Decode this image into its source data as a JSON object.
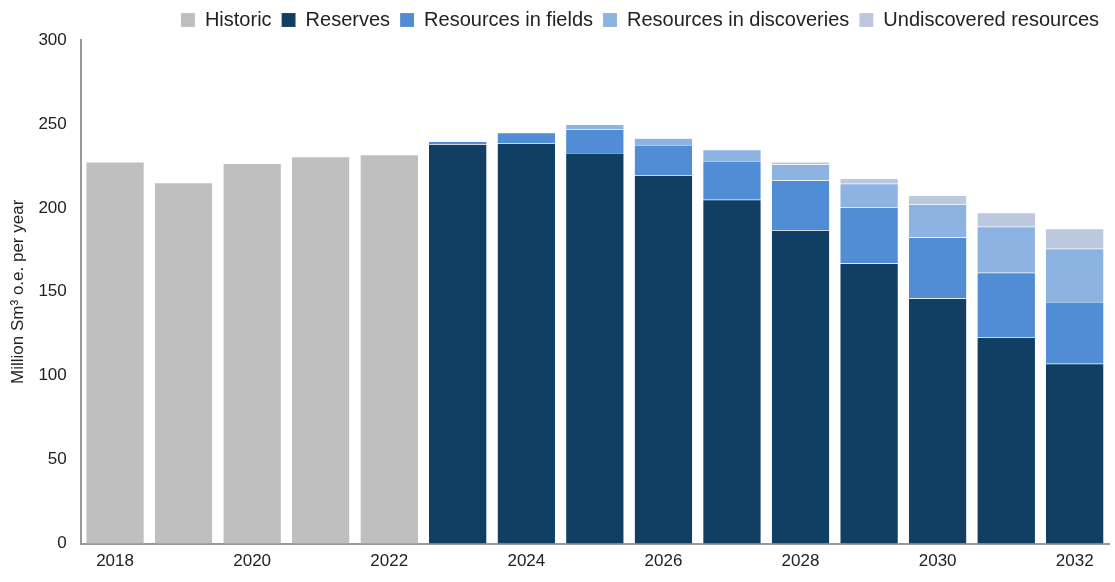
{
  "chart_data": {
    "type": "bar",
    "stacked": true,
    "ylabel": "Million Sm³ o.e. per year",
    "categories": [
      "2018",
      null,
      "2020",
      null,
      "2022",
      null,
      "2024",
      null,
      "2026",
      null,
      "2028",
      null,
      "2030",
      null,
      "2032"
    ],
    "series": [
      {
        "name": "Historic",
        "color": "#bfbfbf",
        "values": [
          227.3,
          215,
          226.4,
          230.4,
          231.7,
          null,
          null,
          null,
          null,
          null,
          null,
          null,
          null,
          null,
          null
        ]
      },
      {
        "name": "Reserves",
        "color": "#103f63",
        "values": [
          null,
          null,
          null,
          null,
          null,
          237.9,
          238.5,
          232.7,
          219.4,
          204.8,
          186.7,
          166.9,
          146,
          122.9,
          107.1
        ]
      },
      {
        "name": "Resources in fields",
        "color": "#518dd4",
        "values": [
          null,
          null,
          null,
          null,
          null,
          1.6,
          6.3,
          14.2,
          18.1,
          23.1,
          29.6,
          33.5,
          36.3,
          38.4,
          36.8
        ]
      },
      {
        "name": "Resources in discoveries",
        "color": "#8db3e2",
        "values": [
          null,
          null,
          null,
          null,
          null,
          null,
          null,
          2.7,
          4,
          6.7,
          9.5,
          14,
          19.8,
          27.5,
          31.7
        ]
      },
      {
        "name": "Undiscovered resources",
        "color": "#bcc8e0",
        "values": [
          null,
          null,
          null,
          null,
          null,
          null,
          null,
          null,
          null,
          null,
          1.5,
          3.1,
          5.2,
          8.3,
          11.9
        ]
      }
    ],
    "ylim": [
      0,
      300
    ],
    "yticks": [
      0,
      50,
      100,
      150,
      200,
      250,
      300
    ],
    "grid": false,
    "legend": "top"
  }
}
